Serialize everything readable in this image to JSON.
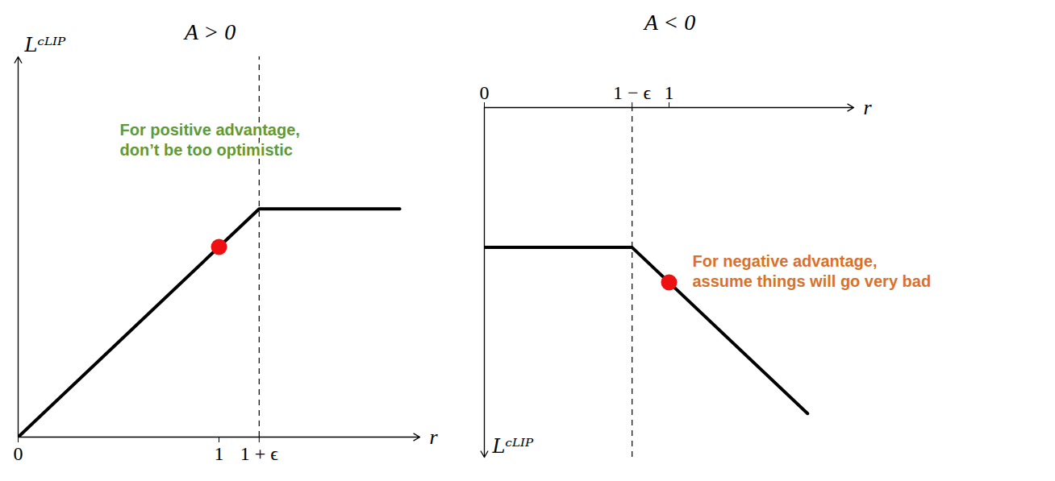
{
  "chart_data": [
    {
      "type": "line",
      "title": "A > 0",
      "x_label": "r",
      "y_label": "Lᶜᴸᴵᴾ",
      "x": [
        0,
        1.2,
        1.9
      ],
      "values": [
        0,
        1.2,
        1.2
      ],
      "color": "#000000",
      "xlim": [
        0,
        2
      ],
      "ylim": [
        0,
        2
      ],
      "xticks": [
        0,
        1,
        {
          "value": 1.2,
          "label": "1 + ϵ"
        }
      ],
      "tick_labels": "x",
      "clip_bound": 1.2,
      "point": {
        "x": 1,
        "y": 1,
        "color": "#ee1111"
      },
      "annotations": [
        {
          "text": "For positive advantage,\ndon’t be too optimistic",
          "color": "#5e9a35"
        }
      ]
    },
    {
      "type": "line",
      "title": "A < 0",
      "x_label": "r",
      "y_label": "Lᶜᴸᴵᴾ",
      "x": [
        0,
        0.8,
        1.75
      ],
      "values": [
        -0.8,
        -0.8,
        -1.75
      ],
      "color": "#000000",
      "xlim": [
        0,
        2
      ],
      "ylim": [
        -2,
        0
      ],
      "xticks": [
        0,
        {
          "value": 0.8,
          "label": "1 − ϵ"
        },
        1
      ],
      "tick_labels": "x",
      "clip_bound": 0.8,
      "point": {
        "x": 1,
        "y": -1,
        "color": "#ee1111"
      },
      "annotations": [
        {
          "text": "For negative advantage,\nassume things will go very bad",
          "color": "#d9702b"
        }
      ]
    }
  ]
}
